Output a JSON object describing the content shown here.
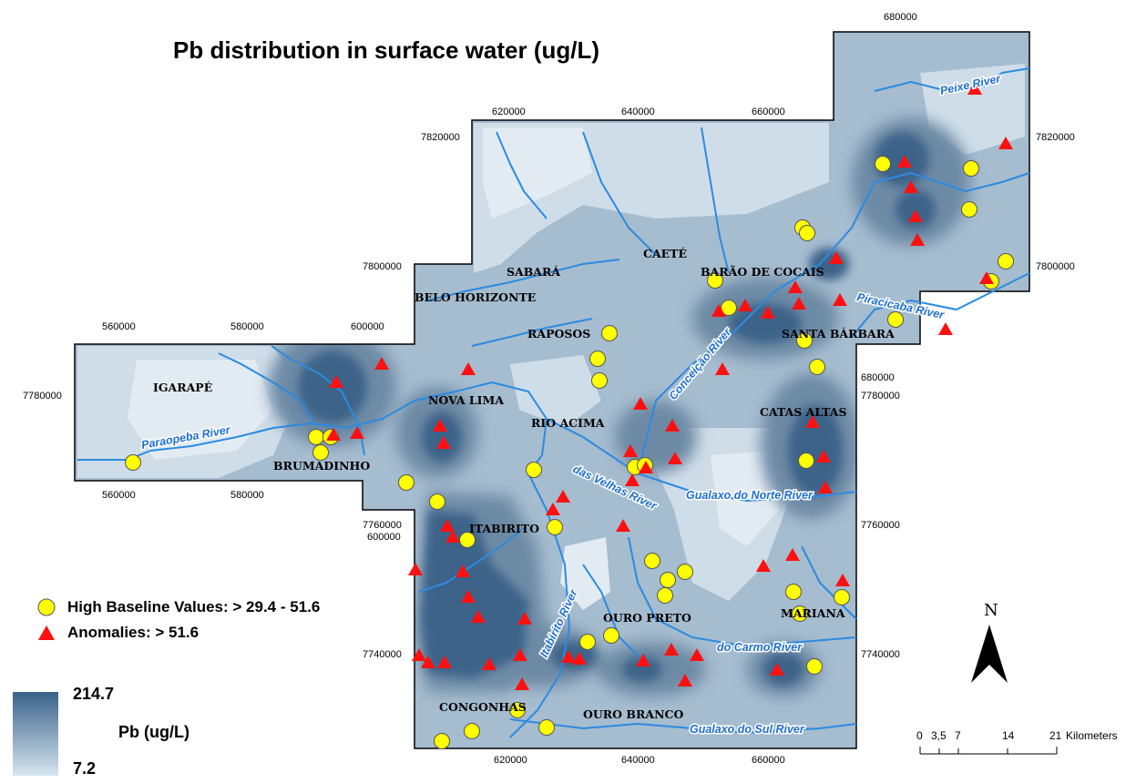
{
  "title": "Pb distribution in surface water (ug/L)",
  "grid_labels": {
    "top_block": [
      "620000",
      "640000",
      "660000"
    ],
    "top_corner": "680000",
    "left_west": [
      "560000",
      "580000",
      "600000"
    ],
    "bottom_west": [
      "560000",
      "580000"
    ],
    "bottom_center": [
      "620000",
      "640000",
      "660000"
    ],
    "right_inner": "680000",
    "inner_600": "600000",
    "y_left": [
      "7820000",
      "7800000",
      "7780000",
      "7760000",
      "7740000"
    ],
    "y_right": [
      "7820000",
      "7800000",
      "7780000",
      "7760000",
      "7740000"
    ]
  },
  "towns": [
    "IGARAPÉ",
    "BRUMADINHO",
    "NOVA LIMA",
    "BELO HORIZONTE",
    "SABARÁ",
    "CAETÉ",
    "RAPOSOS",
    "RIO ACIMA",
    "ITABIRITO",
    "BARÃO DE COCAIS",
    "SANTA BÁRBARA",
    "CATAS ALTAS",
    "OURO PRETO",
    "MARIANA",
    "CONGONHAS",
    "OURO BRANCO"
  ],
  "rivers": [
    "Paraopeba River",
    "Peixe River",
    "Piracicaba River",
    "Conceição River",
    "das Velhas River",
    "Gualaxo do Norte River",
    "Itabirito River",
    "do Carmo River",
    "Gualaxo do Sul River"
  ],
  "legend": {
    "high_baseline": "High Baseline Values: > 29.4 - 51.6",
    "anomalies": "Anomalies: > 51.6",
    "ramp_max": "214.7",
    "ramp_min": "7.2",
    "ramp_label": "Pb (ug/L)",
    "high_color": "#ffff00",
    "anomaly_color": "#ff0000",
    "ramp_dark": "#3a6289",
    "ramp_light": "#d6e5ef"
  },
  "north_label": "N",
  "scale_bar": {
    "ticks": [
      "0",
      "3,5",
      "7",
      "14",
      "21"
    ],
    "unit": "Kilometers"
  }
}
